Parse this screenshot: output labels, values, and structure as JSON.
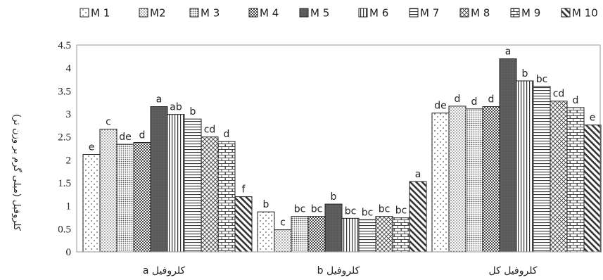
{
  "chart_data": {
    "type": "bar",
    "title": "",
    "ylabel": "کلروفیل (میلی گرم بر وزن تر)",
    "xlabel": "",
    "ylim": [
      0,
      4.5
    ],
    "yticks": [
      "0",
      "0.5",
      "1",
      "1.5",
      "2",
      "2.5",
      "3",
      "3.5",
      "4",
      "4.5"
    ],
    "grid": false,
    "legend_position": "top",
    "categories": [
      "کلروفیل a",
      "کلروفیل b",
      "کلروفیل کل"
    ],
    "series": [
      {
        "name": "M 1",
        "pattern": "dots-sparse",
        "values": [
          2.12,
          0.87,
          3.02
        ],
        "labels": [
          "e",
          "b",
          "de"
        ]
      },
      {
        "name": "M2",
        "pattern": "dots-fine",
        "values": [
          2.67,
          0.48,
          3.17
        ],
        "labels": [
          "c",
          "c",
          "d"
        ]
      },
      {
        "name": "M 3",
        "pattern": "dots-dense",
        "values": [
          2.34,
          0.77,
          3.11
        ],
        "labels": [
          "de",
          "bc",
          "d"
        ]
      },
      {
        "name": "M 4",
        "pattern": "checker",
        "values": [
          2.38,
          0.77,
          3.16
        ],
        "labels": [
          "d",
          "bc",
          "d"
        ]
      },
      {
        "name": "M 5",
        "pattern": "solid-dark",
        "values": [
          3.16,
          1.04,
          4.2
        ],
        "labels": [
          "a",
          "b",
          "a"
        ]
      },
      {
        "name": "M 6",
        "pattern": "vlines",
        "values": [
          2.99,
          0.73,
          3.72
        ],
        "labels": [
          "ab",
          "bc",
          "b"
        ]
      },
      {
        "name": "M 7",
        "pattern": "hlines",
        "values": [
          2.89,
          0.7,
          3.6
        ],
        "labels": [
          "b",
          "bc",
          "bc"
        ]
      },
      {
        "name": "M 8",
        "pattern": "diamonds",
        "values": [
          2.5,
          0.77,
          3.28
        ],
        "labels": [
          "cd",
          "bc",
          "cd"
        ]
      },
      {
        "name": "M 9",
        "pattern": "bricks",
        "values": [
          2.4,
          0.74,
          3.14
        ],
        "labels": [
          "d",
          "bc",
          "d"
        ]
      },
      {
        "name": "M 10",
        "pattern": "diag",
        "values": [
          1.2,
          1.53,
          2.76
        ],
        "labels": [
          "f",
          "a",
          "e"
        ]
      }
    ]
  }
}
